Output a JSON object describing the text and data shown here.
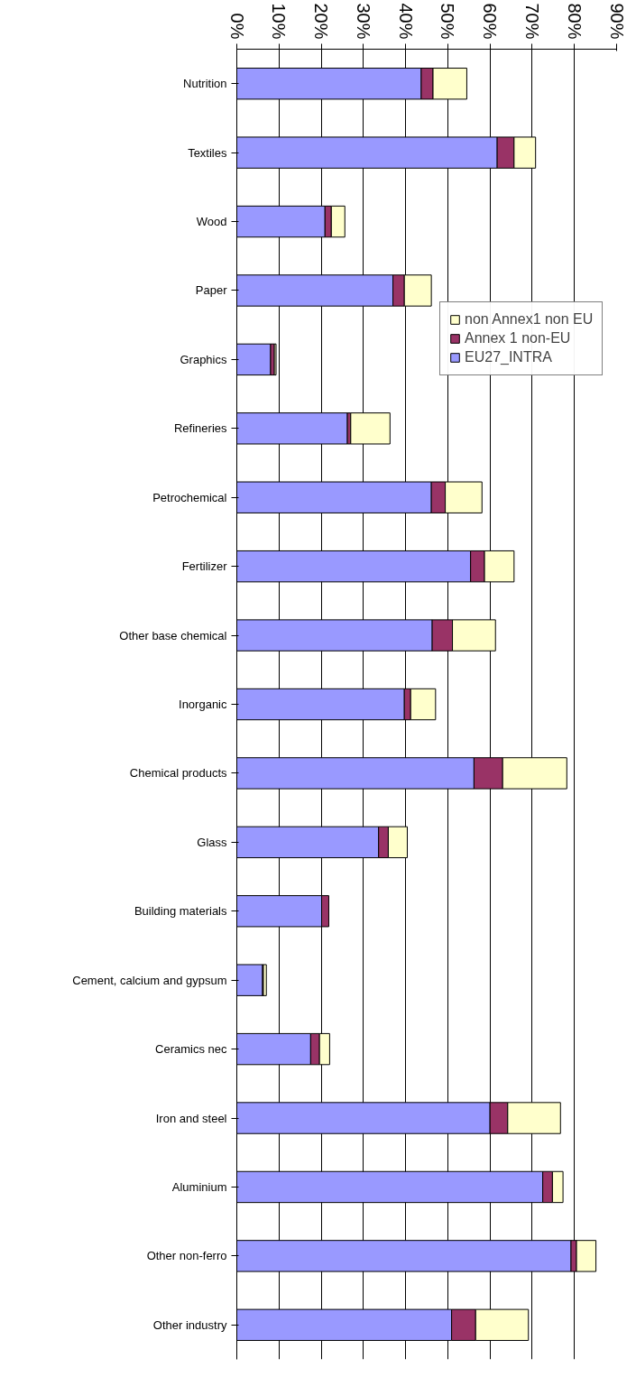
{
  "chart_data": {
    "type": "bar",
    "orientation": "horizontal",
    "stacked": true,
    "categories": [
      "Nutrition",
      "Textiles",
      "Wood",
      "Paper",
      "Graphics",
      "Refineries",
      "Petrochemical",
      "Fertilizer",
      "Other base chemical",
      "Inorganic",
      "Chemical products",
      "Glass",
      "Building materials",
      "Cement, calcium and gypsum",
      "Ceramics nec",
      "Iron and steel",
      "Aluminium",
      "Other non-ferro",
      "Other industry"
    ],
    "series": [
      {
        "name": "EU27_INTRA",
        "color": "#9999ff",
        "values": [
          43.7,
          61.7,
          20.9,
          37.0,
          8.0,
          26.2,
          46.1,
          55.4,
          46.3,
          39.7,
          56.2,
          33.6,
          20.1,
          6.1,
          17.5,
          60.0,
          72.5,
          79.2,
          50.9
        ]
      },
      {
        "name": "Annex 1 non-EU",
        "color": "#993366",
        "values": [
          2.8,
          4.0,
          1.5,
          2.7,
          0.9,
          0.8,
          3.3,
          3.3,
          4.8,
          1.5,
          6.8,
          2.3,
          1.7,
          0.2,
          2.1,
          4.2,
          2.3,
          1.3,
          5.7
        ]
      },
      {
        "name": "non Annex1 non EU",
        "color": "#ffffcc",
        "values": [
          8.0,
          5.1,
          3.2,
          6.4,
          0.4,
          9.3,
          8.7,
          7.0,
          10.2,
          5.9,
          15.2,
          4.5,
          null,
          0.7,
          2.4,
          12.5,
          2.5,
          4.6,
          12.5
        ]
      }
    ],
    "xlim": [
      0,
      90
    ],
    "xticks": [
      {
        "value": 0,
        "label": "0%"
      },
      {
        "value": 10,
        "label": "10%"
      },
      {
        "value": 20,
        "label": "20%"
      },
      {
        "value": 30,
        "label": "30%"
      },
      {
        "value": 40,
        "label": "40%"
      },
      {
        "value": 50,
        "label": "50%"
      },
      {
        "value": 60,
        "label": "60%"
      },
      {
        "value": 70,
        "label": "70%"
      },
      {
        "value": 80,
        "label": "80%"
      },
      {
        "value": 90,
        "label": "90%"
      }
    ],
    "grid": "x",
    "legend": "right"
  }
}
